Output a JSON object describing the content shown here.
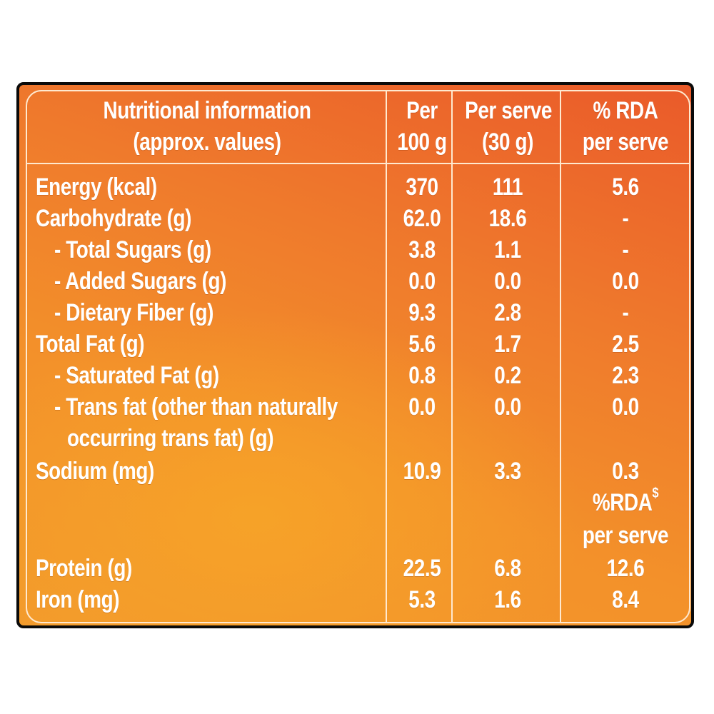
{
  "headers": {
    "nutrition_line1": "Nutritional information",
    "nutrition_line2": "(approx. values)",
    "per100_line1": "Per",
    "per100_line2": "100 g",
    "perserve_line1": "Per serve",
    "perserve_line2": "(30 g)",
    "rda_line1": "% RDA",
    "rda_line2": "per serve"
  },
  "rows": [
    {
      "label": "Energy (kcal)",
      "per100": "370",
      "serve": "111",
      "rda": "5.6"
    },
    {
      "label": "Carbohydrate (g)",
      "per100": "62.0",
      "serve": "18.6",
      "rda": "-"
    },
    {
      "label": "- Total Sugars (g)",
      "per100": "3.8",
      "serve": "1.1",
      "rda": "-"
    },
    {
      "label": "- Added Sugars (g)",
      "per100": "0.0",
      "serve": "0.0",
      "rda": "0.0"
    },
    {
      "label": "- Dietary Fiber (g)",
      "per100": "9.3",
      "serve": "2.8",
      "rda": "-"
    },
    {
      "label": "Total Fat (g)",
      "per100": "5.6",
      "serve": "1.7",
      "rda": "2.5"
    },
    {
      "label": "- Saturated Fat (g)",
      "per100": "0.8",
      "serve": "0.2",
      "rda": "2.3"
    },
    {
      "label": "- Trans fat (other than naturally",
      "label_line2": "occurring trans fat) (g)",
      "per100": "0.0",
      "serve": "0.0",
      "rda": "0.0"
    },
    {
      "label": "Sodium (mg)",
      "per100": "10.9",
      "serve": "3.3",
      "rda": "0.3"
    },
    {
      "label": "Protein (g)",
      "per100": "22.5",
      "serve": "6.8",
      "rda": "12.6"
    },
    {
      "label": "Iron (mg)",
      "per100": "5.3",
      "serve": "1.6",
      "rda": "8.4"
    }
  ],
  "sub_header": {
    "rda_label": "%RDA",
    "rda_superscript": "$",
    "rda_label_line2": "per serve"
  }
}
